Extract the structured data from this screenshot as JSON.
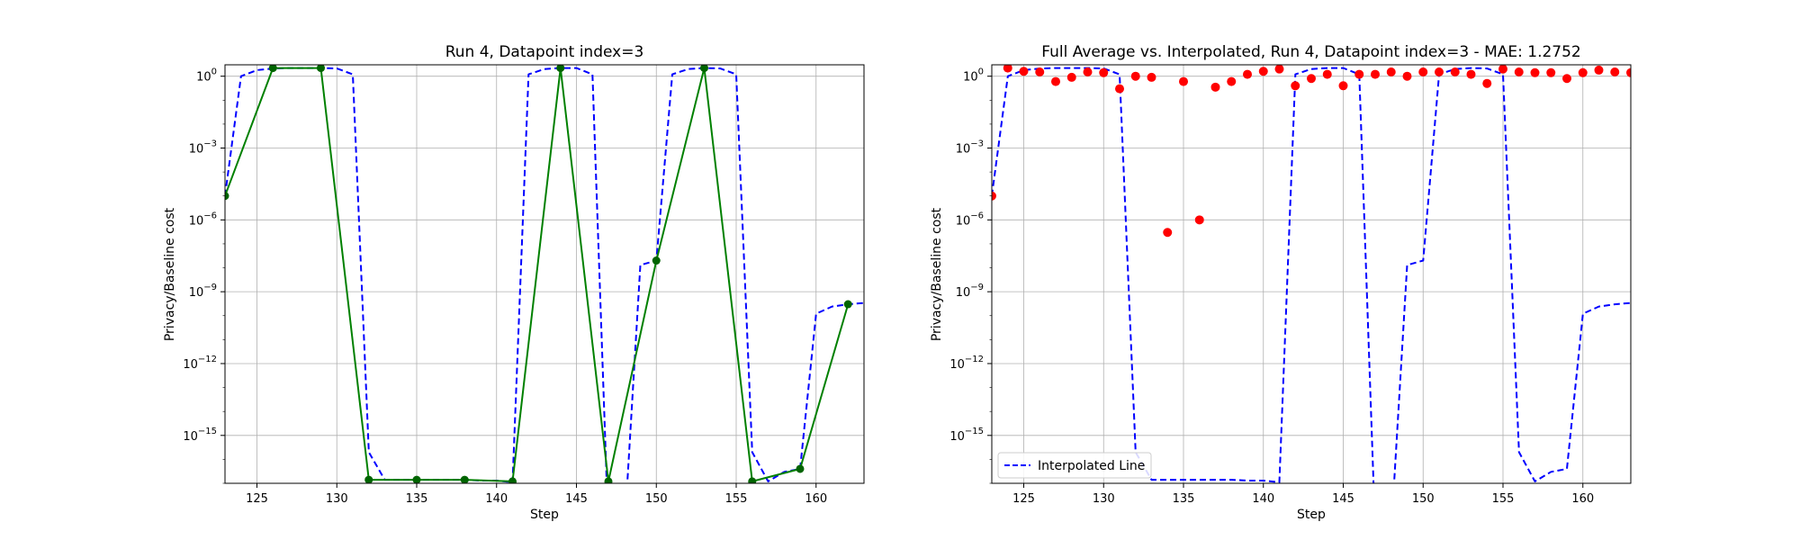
{
  "chart_data": [
    {
      "type": "line",
      "title": "Run 4, Datapoint index=3",
      "xlabel": "Step",
      "ylabel": "Privacy/Baseline cost",
      "xlim": [
        123,
        163
      ],
      "ylim": [
        1e-17,
        3
      ],
      "yscale": "log",
      "grid": true,
      "x_ticks": [
        125,
        130,
        135,
        140,
        145,
        150,
        155,
        160
      ],
      "y_ticks": [
        {
          "value": 1.0,
          "label": "10",
          "exp": "0"
        },
        {
          "value": 0.001,
          "label": "10",
          "exp": "−3"
        },
        {
          "value": 1e-06,
          "label": "10",
          "exp": "−6"
        },
        {
          "value": 1e-09,
          "label": "10",
          "exp": "−9"
        },
        {
          "value": 1e-12,
          "label": "10",
          "exp": "−12"
        },
        {
          "value": 1e-15,
          "label": "10",
          "exp": "−15"
        }
      ],
      "series": [
        {
          "style": "dashed",
          "color": "#0000ff",
          "x": [
            123,
            124,
            125,
            126,
            127,
            128,
            129,
            130,
            131,
            132,
            133,
            134,
            135,
            136,
            137,
            138,
            139,
            140,
            141,
            142,
            143,
            144,
            145,
            146,
            147,
            148,
            149,
            150,
            151,
            152,
            153,
            154,
            155,
            156,
            157,
            158,
            159,
            160,
            161,
            162,
            163
          ],
          "y": [
            1e-05,
            1,
            1.8,
            2.1,
            2.2,
            2.2,
            2.2,
            2.1,
            1.2,
            2e-16,
            1.4e-17,
            1.4e-17,
            1.4e-17,
            1.4e-17,
            1.4e-17,
            1.4e-17,
            1.3e-17,
            1.3e-17,
            1.1e-17,
            1.2,
            2,
            2.2,
            2.2,
            1.2,
            1e-19,
            1e-19,
            1.3e-08,
            2e-08,
            1.2,
            2,
            2.2,
            2.1,
            1.2,
            2e-16,
            1.2e-17,
            3e-17,
            4e-17,
            1.2e-10,
            2.4e-10,
            3e-10,
            3.4e-10
          ]
        },
        {
          "style": "solid-marker",
          "color": "#008000",
          "marker_color": "#006400",
          "x": [
            123,
            126,
            129,
            132,
            135,
            138,
            141,
            144,
            147,
            150,
            153,
            156,
            159,
            162
          ],
          "y": [
            1e-05,
            2.2,
            2.2,
            1.4e-17,
            1.4e-17,
            1.4e-17,
            1.2e-17,
            2.2,
            1.2e-17,
            2e-08,
            2.2,
            1.2e-17,
            4e-17,
            3e-10
          ]
        }
      ]
    },
    {
      "type": "line",
      "title": "Full Average vs. Interpolated, Run 4, Datapoint index=3 - MAE: 1.2752",
      "xlabel": "Step",
      "ylabel": "Privacy/Baseline cost",
      "xlim": [
        123,
        163
      ],
      "ylim": [
        1e-17,
        3
      ],
      "yscale": "log",
      "grid": true,
      "legend_position": "lower-left",
      "x_ticks": [
        125,
        130,
        135,
        140,
        145,
        150,
        155,
        160
      ],
      "y_ticks": [
        {
          "value": 1.0,
          "label": "10",
          "exp": "0"
        },
        {
          "value": 0.001,
          "label": "10",
          "exp": "−3"
        },
        {
          "value": 1e-06,
          "label": "10",
          "exp": "−6"
        },
        {
          "value": 1e-09,
          "label": "10",
          "exp": "−9"
        },
        {
          "value": 1e-12,
          "label": "10",
          "exp": "−12"
        },
        {
          "value": 1e-15,
          "label": "10",
          "exp": "−15"
        }
      ],
      "series": [
        {
          "name": "Interpolated Line",
          "style": "dashed",
          "color": "#0000ff",
          "x": [
            123,
            124,
            125,
            126,
            127,
            128,
            129,
            130,
            131,
            132,
            133,
            134,
            135,
            136,
            137,
            138,
            139,
            140,
            141,
            142,
            143,
            144,
            145,
            146,
            147,
            148,
            149,
            150,
            151,
            152,
            153,
            154,
            155,
            156,
            157,
            158,
            159,
            160,
            161,
            162,
            163
          ],
          "y": [
            1e-05,
            1,
            1.8,
            2.1,
            2.2,
            2.2,
            2.2,
            2.1,
            1.2,
            2e-16,
            1.4e-17,
            1.4e-17,
            1.4e-17,
            1.4e-17,
            1.4e-17,
            1.4e-17,
            1.3e-17,
            1.3e-17,
            1.1e-17,
            1.2,
            2,
            2.2,
            2.2,
            1.2,
            1e-19,
            1e-19,
            1.3e-08,
            2e-08,
            1.2,
            2,
            2.2,
            2.1,
            1.2,
            2e-16,
            1.2e-17,
            3e-17,
            4e-17,
            1.2e-10,
            2.4e-10,
            3e-10,
            3.4e-10
          ]
        },
        {
          "style": "scatter",
          "color": "#ff0000",
          "x": [
            123,
            124,
            125,
            126,
            127,
            128,
            129,
            130,
            131,
            132,
            133,
            134,
            135,
            136,
            137,
            138,
            139,
            140,
            141,
            142,
            143,
            144,
            145,
            146,
            147,
            148,
            149,
            150,
            151,
            152,
            153,
            154,
            155,
            156,
            157,
            158,
            159,
            160,
            161,
            162,
            163
          ],
          "y": [
            1e-05,
            2.2,
            1.6,
            1.5,
            0.6,
            0.9,
            1.5,
            1.4,
            0.3,
            1.0,
            0.9,
            3e-07,
            0.6,
            1e-06,
            0.35,
            0.6,
            1.2,
            1.6,
            2.0,
            0.4,
            0.8,
            1.2,
            0.4,
            1.2,
            1.2,
            1.5,
            1.0,
            1.5,
            1.5,
            1.5,
            1.2,
            0.5,
            2.0,
            1.5,
            1.4,
            1.4,
            0.8,
            1.4,
            1.8,
            1.5,
            1.4
          ]
        }
      ]
    }
  ]
}
